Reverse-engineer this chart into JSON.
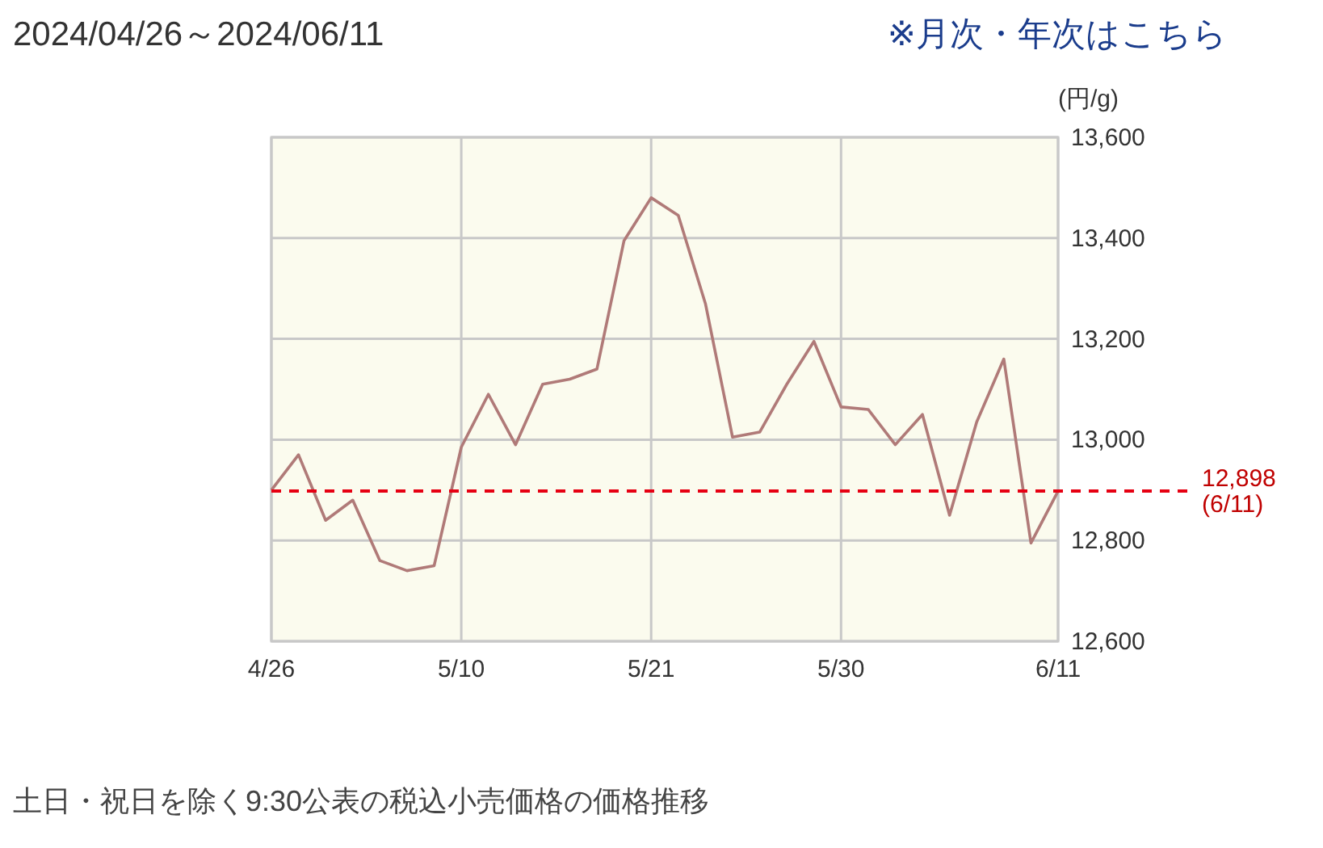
{
  "chart_data": {
    "type": "line",
    "title": "2024/04/26～2024/06/11",
    "ylabel": "(円/g)",
    "annotations": [
      "※月次・年次はこちら",
      "土日・祝日を除く9:30公表の税込小売価格の価格推移"
    ],
    "categories": [
      "4/26",
      null,
      null,
      null,
      null,
      null,
      null,
      "5/10",
      null,
      null,
      null,
      null,
      null,
      null,
      "5/21",
      null,
      null,
      null,
      null,
      null,
      null,
      "5/30",
      null,
      null,
      null,
      null,
      null,
      null,
      null,
      "6/11"
    ],
    "series": [
      {
        "color": "#b07a78",
        "values": [
          12900,
          12970,
          12840,
          12880,
          12760,
          12740,
          12750,
          12985,
          13090,
          12990,
          13110,
          13120,
          13140,
          13395,
          13480,
          13445,
          13270,
          13005,
          13015,
          13110,
          13195,
          13065,
          13060,
          12990,
          13050,
          12850,
          13035,
          13160,
          12795,
          12898
        ]
      }
    ],
    "ylim": [
      12600,
      13600
    ],
    "yticks": [
      {
        "value": 12600,
        "label": "12,600"
      },
      {
        "value": 12800,
        "label": "12,800"
      },
      {
        "value": 13000,
        "label": "13,000"
      },
      {
        "value": 13200,
        "label": "13,200"
      },
      {
        "value": 13400,
        "label": "13,400"
      },
      {
        "value": 13600,
        "label": "13,600"
      }
    ],
    "ref_lines": [
      {
        "axis": "y",
        "value": 12898,
        "label": "12,898\n(6/11)",
        "color": "#e60012",
        "line_style": "dashed"
      }
    ],
    "grid": true,
    "marker": "none",
    "line_style": "solid"
  }
}
